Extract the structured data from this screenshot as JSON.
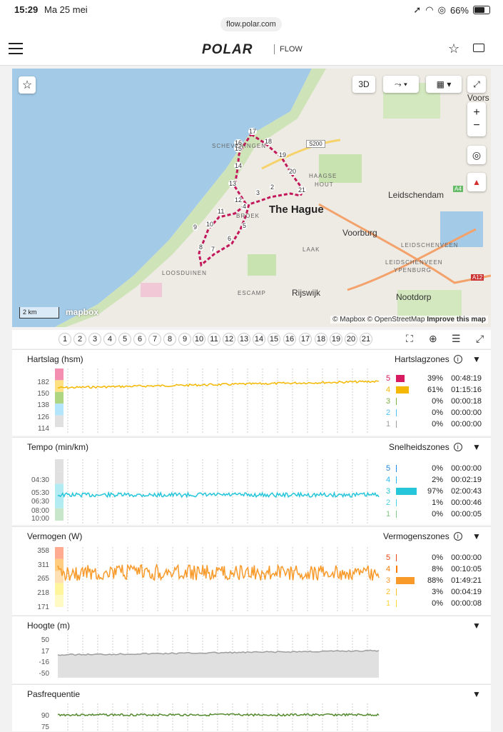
{
  "status": {
    "time": "15:29",
    "date": "Ma 25 mei",
    "battery": "66%"
  },
  "browser": {
    "url": "flow.polar.com"
  },
  "app": {
    "logo": "POLAR",
    "section": "FLOW"
  },
  "map": {
    "btn_3d": "3D",
    "places": {
      "hague": "The Hague",
      "leidschendam": "Leidschendam",
      "voorburg": "Voorburg",
      "nootdorp": "Nootdorp",
      "rijswijk": "Rijswijk",
      "voors": "Voors",
      "scheveningen": "SCHEVENINGEN",
      "haagse_hout": "HAAGSE",
      "haagse_hout2": "HOUT",
      "loosduinen": "LOOSDUINEN",
      "escamp": "ESCAMP",
      "laak": "LAAK",
      "leidschenveen": "LEIDSCHENVEEN",
      "leidschenveen2": "LEIDSCHENVEEN",
      "ypenburg": "YPENBURG",
      "bloemtuin": "BROEK"
    },
    "roads": {
      "s200": "S200",
      "a4": "A4",
      "a12": "A12"
    },
    "scale": "2 km",
    "mapbox": "mapbox",
    "attribution": "© Mapbox © OpenStreetMap",
    "improve": "Improve this map",
    "markers": [
      "1",
      "2",
      "3",
      "4",
      "5",
      "6",
      "7",
      "8",
      "9",
      "10",
      "11",
      "12",
      "13",
      "14",
      "15",
      "16",
      "17",
      "18",
      "19",
      "20",
      "21"
    ]
  },
  "laps": [
    "1",
    "2",
    "3",
    "4",
    "5",
    "6",
    "7",
    "8",
    "9",
    "10",
    "11",
    "12",
    "13",
    "14",
    "15",
    "16",
    "17",
    "18",
    "19",
    "20",
    "21"
  ],
  "hr": {
    "title": "Hartslag (hsm)",
    "zones_title": "Hartslagzones",
    "yticks": [
      "182",
      "150",
      "138",
      "126",
      "114"
    ],
    "zones": [
      {
        "n": "5",
        "pct": "39%",
        "time": "00:48:19",
        "color": "#d81b60",
        "frac": 0.39
      },
      {
        "n": "4",
        "pct": "61%",
        "time": "01:15:16",
        "color": "#f5b800",
        "frac": 0.61
      },
      {
        "n": "3",
        "pct": "0%",
        "time": "00:00:18",
        "color": "#7cb342",
        "frac": 0
      },
      {
        "n": "2",
        "pct": "0%",
        "time": "00:00:00",
        "color": "#4fc3f7",
        "frac": 0
      },
      {
        "n": "1",
        "pct": "0%",
        "time": "00:00:00",
        "color": "#9e9e9e",
        "frac": 0
      }
    ]
  },
  "pace": {
    "title": "Tempo (min/km)",
    "zones_title": "Snelheidszones",
    "yticks": [
      "04:30",
      "05:30",
      "06:30",
      "08:00",
      "10:00"
    ],
    "zones": [
      {
        "n": "5",
        "pct": "0%",
        "time": "00:00:00",
        "color": "#1e88e5",
        "frac": 0
      },
      {
        "n": "4",
        "pct": "2%",
        "time": "00:02:19",
        "color": "#29b6f6",
        "frac": 0.02
      },
      {
        "n": "3",
        "pct": "97%",
        "time": "02:00:43",
        "color": "#26c6da",
        "frac": 0.97
      },
      {
        "n": "2",
        "pct": "1%",
        "time": "00:00:46",
        "color": "#4dd0e1",
        "frac": 0.01
      },
      {
        "n": "1",
        "pct": "0%",
        "time": "00:00:05",
        "color": "#81c784",
        "frac": 0
      }
    ]
  },
  "power": {
    "title": "Vermogen (W)",
    "zones_title": "Vermogenszones",
    "yticks": [
      "358",
      "311",
      "265",
      "218",
      "171"
    ],
    "zones": [
      {
        "n": "5",
        "pct": "0%",
        "time": "00:00:00",
        "color": "#e64a19",
        "frac": 0
      },
      {
        "n": "4",
        "pct": "8%",
        "time": "00:10:05",
        "color": "#f57c00",
        "frac": 0.08
      },
      {
        "n": "3",
        "pct": "88%",
        "time": "01:49:21",
        "color": "#f89a2a",
        "frac": 0.88
      },
      {
        "n": "2",
        "pct": "3%",
        "time": "00:04:19",
        "color": "#fbc02d",
        "frac": 0.03
      },
      {
        "n": "1",
        "pct": "0%",
        "time": "00:00:08",
        "color": "#fdd835",
        "frac": 0
      }
    ]
  },
  "altitude": {
    "title": "Hoogte (m)",
    "yticks": [
      "50",
      "17",
      "-16",
      "-50"
    ]
  },
  "cadence": {
    "title": "Pasfrequentie",
    "yticks": [
      "90",
      "75"
    ]
  }
}
